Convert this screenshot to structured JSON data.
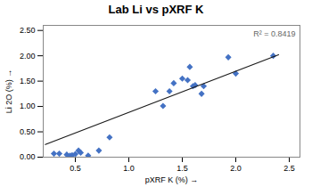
{
  "chart_data": {
    "type": "scatter",
    "title": "Lab Li vs pXRF K",
    "xlabel": "pXRF K (%)",
    "ylabel": "Li 2O (%)",
    "annotation": "R² = 0.8419",
    "xlim": [
      0.2,
      2.6
    ],
    "ylim": [
      0.0,
      2.6
    ],
    "xticks": [
      0.5,
      {
        "value": 1.0,
        "label": "1.0"
      },
      1.5,
      {
        "value": 2.0,
        "label": "2.0"
      },
      2.5
    ],
    "yticks": [
      {
        "value": 0.0,
        "label": "0.00"
      },
      {
        "value": 0.5,
        "label": "0.50"
      },
      {
        "value": 1.0,
        "label": "1.00"
      },
      {
        "value": 1.5,
        "label": "1.50"
      },
      {
        "value": 2.0,
        "label": "2.00"
      },
      {
        "value": 2.5,
        "label": "2.50"
      }
    ],
    "grid": false,
    "series": [
      {
        "type": "scatter",
        "color": "#4472C4",
        "marker": "diamond",
        "x": [
          0.3,
          0.35,
          0.42,
          0.45,
          0.47,
          0.5,
          0.53,
          0.55,
          0.62,
          0.72,
          0.82,
          1.25,
          1.32,
          1.38,
          1.42,
          1.5,
          1.55,
          1.57,
          1.6,
          1.62,
          1.68,
          1.7,
          1.93,
          2.0,
          2.35
        ],
        "values": [
          0.07,
          0.07,
          0.05,
          0.03,
          0.04,
          0.06,
          0.13,
          0.09,
          0.03,
          0.13,
          0.39,
          1.3,
          1.01,
          1.3,
          1.46,
          1.55,
          1.52,
          1.78,
          1.4,
          1.42,
          1.25,
          1.4,
          1.97,
          1.65,
          2.0
        ]
      },
      {
        "type": "line",
        "color": "#1a1a1a",
        "x": [
          0.22,
          2.4
        ],
        "values": [
          0.25,
          2.02
        ]
      }
    ]
  }
}
